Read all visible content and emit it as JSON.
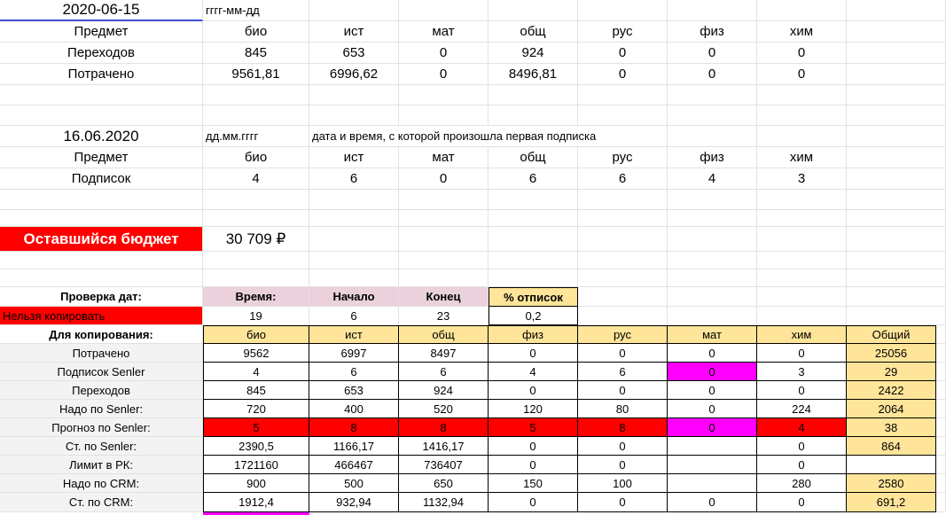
{
  "top": {
    "date1": "2020-06-15",
    "date1_format": "гггг-мм-дд",
    "subjects_label": "Предмет",
    "subjects1": [
      "био",
      "ист",
      "мат",
      "общ",
      "рус",
      "физ",
      "хим"
    ],
    "transitions_label": "Переходов",
    "transitions": [
      "845",
      "653",
      "0",
      "924",
      "0",
      "0",
      "0"
    ],
    "spent_label": "Потрачено",
    "spent": [
      "9561,81",
      "6996,62",
      "0",
      "8496,81",
      "0",
      "0",
      "0"
    ],
    "date2": "16.06.2020",
    "date2_format": "дд.мм.гггг",
    "date2_note": "дата и время, с которой произошла первая подписка",
    "subjects2": [
      "био",
      "ист",
      "мат",
      "общ",
      "рус",
      "физ",
      "хим"
    ],
    "subs_label": "Подписок",
    "subs": [
      "4",
      "6",
      "0",
      "6",
      "6",
      "4",
      "3"
    ],
    "budget_label": "Оставшийся бюджет",
    "budget_value": "30 709 ₽"
  },
  "table": {
    "check_label": "Проверка дат:",
    "time_label": "Время:",
    "start_label": "Начало",
    "end_label": "Конец",
    "unsub_label": "% отписок",
    "nocopy_label": "Нельзя копировать",
    "time_val": "19",
    "start_val": "6",
    "end_val": "23",
    "unsub_val": "0,2",
    "copy_label": "Для копирования:",
    "headers": [
      "био",
      "ист",
      "общ",
      "физ",
      "рус",
      "мат",
      "хим",
      "Общий"
    ],
    "rows": [
      {
        "label": "Потрачено",
        "cells": [
          "9562",
          "6997",
          "8497",
          "0",
          "0",
          "0",
          "0",
          "25056"
        ]
      },
      {
        "label": "Подписок Senler",
        "cells": [
          "4",
          "6",
          "6",
          "4",
          "6",
          "0",
          "3",
          "29"
        ]
      },
      {
        "label": "Переходов",
        "cells": [
          "845",
          "653",
          "924",
          "0",
          "0",
          "0",
          "0",
          "2422"
        ]
      },
      {
        "label": "Надо по Senler:",
        "cells": [
          "720",
          "400",
          "520",
          "120",
          "80",
          "0",
          "224",
          "2064"
        ]
      },
      {
        "label": "Прогноз по Senler:",
        "cells": [
          "5",
          "8",
          "8",
          "5",
          "8",
          "0",
          "4",
          "38"
        ]
      },
      {
        "label": "Ст. по Senler:",
        "cells": [
          "2390,5",
          "1166,17",
          "1416,17",
          "0",
          "0",
          "",
          "0",
          "864"
        ]
      },
      {
        "label": "Лимит в РК:",
        "cells": [
          "1721160",
          "466467",
          "736407",
          "0",
          "0",
          "",
          "0",
          ""
        ]
      },
      {
        "label": "Надо по CRM:",
        "cells": [
          "900",
          "500",
          "650",
          "150",
          "100",
          "",
          "280",
          "2580"
        ]
      },
      {
        "label": "Ст. по CRM:",
        "cells": [
          "1912,4",
          "932,94",
          "1132,94",
          "0",
          "0",
          "0",
          "0",
          "691,2"
        ]
      }
    ]
  },
  "colors": {
    "pink": "#ead1dc",
    "yellow": "#ffe599",
    "red": "#ff0000",
    "magenta": "#ff00ff",
    "selection": "#3c4fd0"
  }
}
